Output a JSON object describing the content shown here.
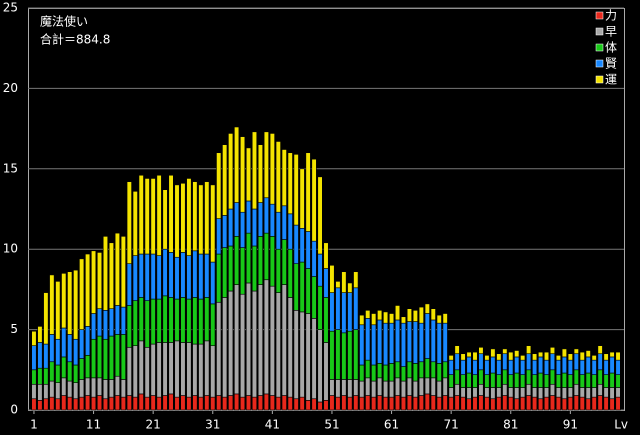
{
  "chart_data": {
    "type": "stacked-bar",
    "title": "魔法使い",
    "subtitle": "合計＝884.8",
    "x_label": "Lv",
    "x": [
      1,
      2,
      3,
      4,
      5,
      6,
      7,
      8,
      9,
      10,
      11,
      12,
      13,
      14,
      15,
      16,
      17,
      18,
      19,
      20,
      21,
      22,
      23,
      24,
      25,
      26,
      27,
      28,
      29,
      30,
      31,
      32,
      33,
      34,
      35,
      36,
      37,
      38,
      39,
      40,
      41,
      42,
      43,
      44,
      45,
      46,
      47,
      48,
      49,
      50,
      51,
      52,
      53,
      54,
      55,
      56,
      57,
      58,
      59,
      60,
      61,
      62,
      63,
      64,
      65,
      66,
      67,
      68,
      69,
      70,
      71,
      72,
      73,
      74,
      75,
      76,
      77,
      78,
      79,
      80,
      81,
      82,
      83,
      84,
      85,
      86,
      87,
      88,
      89,
      90,
      91,
      92,
      93,
      94,
      95,
      96,
      97,
      98,
      99
    ],
    "xlim": [
      0,
      100
    ],
    "xticks": [
      1,
      11,
      21,
      31,
      41,
      51,
      61,
      71,
      81,
      91
    ],
    "ylim": [
      0,
      25
    ],
    "yticks": [
      0,
      5,
      10,
      15,
      20,
      25
    ],
    "grid": true,
    "legend": "top-right",
    "series": [
      {
        "name": "力",
        "color": "#e8281c",
        "values": [
          0.7,
          0.6,
          0.7,
          0.8,
          0.7,
          0.9,
          0.8,
          0.7,
          0.8,
          0.9,
          0.8,
          0.9,
          0.7,
          0.8,
          0.9,
          0.8,
          0.9,
          0.8,
          1.0,
          0.8,
          0.9,
          0.8,
          0.9,
          1.0,
          0.8,
          0.9,
          0.8,
          0.9,
          0.8,
          0.9,
          0.8,
          0.9,
          0.8,
          0.9,
          1.0,
          0.8,
          0.9,
          0.8,
          0.9,
          1.0,
          0.9,
          0.8,
          0.9,
          0.8,
          0.7,
          0.8,
          0.6,
          0.7,
          0.5,
          0.6,
          0.9,
          0.8,
          0.9,
          0.8,
          0.9,
          0.8,
          0.9,
          0.8,
          0.9,
          0.8,
          0.8,
          0.9,
          0.8,
          0.9,
          0.8,
          0.9,
          1.0,
          0.9,
          0.8,
          0.9,
          0.8,
          0.9,
          0.8,
          0.7,
          0.8,
          0.9,
          0.8,
          0.7,
          0.8,
          0.9,
          0.8,
          0.7,
          0.8,
          0.9,
          0.8,
          0.7,
          0.8,
          0.9,
          0.8,
          0.7,
          0.8,
          0.9,
          0.8,
          0.7,
          0.8,
          0.9,
          0.8,
          0.7,
          0.8
        ]
      },
      {
        "name": "早",
        "color": "#a8a8a8",
        "values": [
          0.9,
          1.0,
          0.9,
          1.0,
          1.0,
          1.1,
          1.0,
          1.0,
          1.1,
          1.1,
          1.2,
          1.1,
          1.2,
          1.1,
          1.2,
          1.1,
          3.0,
          3.2,
          3.3,
          3.1,
          3.2,
          3.4,
          3.3,
          3.2,
          3.5,
          3.3,
          3.4,
          3.2,
          3.3,
          3.4,
          3.2,
          5.8,
          6.2,
          6.5,
          6.8,
          6.4,
          7.0,
          6.6,
          6.9,
          7.1,
          6.8,
          6.5,
          6.9,
          6.2,
          5.5,
          5.3,
          5.4,
          5.0,
          4.5,
          3.6,
          1.0,
          1.1,
          1.0,
          1.1,
          1.0,
          1.0,
          1.1,
          1.0,
          1.1,
          1.0,
          1.0,
          1.1,
          1.0,
          1.1,
          1.0,
          1.1,
          1.0,
          1.1,
          1.0,
          1.1,
          0.6,
          0.7,
          0.6,
          0.7,
          0.6,
          0.7,
          0.6,
          0.7,
          0.6,
          0.7,
          0.6,
          0.7,
          0.6,
          0.7,
          0.6,
          0.7,
          0.6,
          0.7,
          0.6,
          0.7,
          0.6,
          0.7,
          0.6,
          0.7,
          0.6,
          0.7,
          0.6,
          0.7,
          0.6
        ]
      },
      {
        "name": "体",
        "color": "#18c818",
        "values": [
          0.9,
          1.0,
          1.0,
          1.2,
          1.1,
          1.3,
          1.2,
          1.1,
          1.3,
          1.4,
          2.4,
          2.6,
          2.5,
          2.7,
          2.6,
          2.8,
          2.6,
          2.8,
          2.7,
          2.9,
          2.8,
          2.7,
          2.9,
          2.8,
          2.6,
          2.8,
          2.7,
          2.9,
          2.8,
          2.7,
          2.6,
          3.0,
          3.1,
          2.8,
          3.0,
          2.9,
          3.1,
          2.8,
          3.0,
          2.9,
          3.1,
          2.7,
          2.8,
          3.0,
          2.9,
          3.1,
          2.8,
          2.6,
          2.7,
          2.8,
          3.0,
          3.1,
          2.9,
          3.0,
          3.1,
          1.0,
          1.1,
          1.0,
          0.9,
          1.0,
          1.1,
          1.0,
          0.9,
          1.0,
          1.1,
          1.0,
          1.2,
          1.0,
          1.1,
          1.0,
          0.8,
          0.9,
          0.8,
          0.9,
          0.8,
          0.9,
          0.8,
          0.9,
          0.8,
          0.9,
          0.8,
          0.9,
          0.8,
          0.9,
          0.8,
          0.9,
          0.8,
          0.9,
          0.8,
          0.9,
          0.8,
          0.9,
          0.8,
          0.9,
          0.8,
          0.9,
          0.8,
          0.9,
          0.8
        ]
      },
      {
        "name": "賢",
        "color": "#1888ff",
        "values": [
          1.5,
          1.6,
          1.5,
          1.7,
          1.6,
          1.8,
          1.7,
          1.6,
          1.8,
          1.8,
          1.6,
          1.7,
          1.8,
          1.7,
          1.8,
          1.7,
          2.6,
          2.8,
          2.7,
          2.9,
          2.8,
          2.7,
          2.9,
          2.8,
          2.6,
          2.8,
          2.7,
          2.9,
          2.8,
          2.7,
          2.6,
          2.2,
          2.0,
          2.3,
          2.1,
          2.2,
          2.0,
          2.3,
          2.1,
          2.2,
          2.0,
          2.3,
          2.1,
          2.2,
          2.4,
          2.1,
          2.3,
          2.2,
          2.0,
          1.8,
          2.4,
          2.6,
          2.5,
          2.4,
          2.6,
          2.5,
          2.6,
          2.5,
          2.7,
          2.6,
          2.5,
          2.6,
          2.7,
          2.5,
          2.6,
          2.4,
          2.8,
          2.6,
          2.5,
          2.4,
          0.9,
          1.0,
          0.9,
          1.0,
          0.9,
          1.0,
          0.9,
          1.0,
          0.9,
          1.0,
          0.9,
          1.0,
          0.9,
          1.0,
          0.9,
          1.0,
          0.9,
          1.0,
          0.9,
          1.0,
          0.9,
          1.0,
          0.9,
          1.0,
          0.9,
          1.0,
          0.9,
          1.0,
          0.9
        ]
      },
      {
        "name": "運",
        "color": "#f4e400",
        "values": [
          0.9,
          1.0,
          3.2,
          3.7,
          3.6,
          3.4,
          3.9,
          4.3,
          4.4,
          4.5,
          3.9,
          3.5,
          4.6,
          4.1,
          4.5,
          4.4,
          5.1,
          4.0,
          4.9,
          4.7,
          4.7,
          5.0,
          3.7,
          4.8,
          4.5,
          4.3,
          4.8,
          4.3,
          4.3,
          4.5,
          4.8,
          4.1,
          4.4,
          4.7,
          4.7,
          4.7,
          3.3,
          4.8,
          3.6,
          4.1,
          4.4,
          4.4,
          3.5,
          3.8,
          4.4,
          3.7,
          4.9,
          5.1,
          4.8,
          1.6,
          1.7,
          0.4,
          1.3,
          0.6,
          1.0,
          0.6,
          0.5,
          0.7,
          0.6,
          0.7,
          0.6,
          0.9,
          0.4,
          0.8,
          0.7,
          1.0,
          0.6,
          0.7,
          0.5,
          0.6,
          0.3,
          0.5,
          0.4,
          0.3,
          0.5,
          0.4,
          0.3,
          0.5,
          0.4,
          0.3,
          0.5,
          0.4,
          0.3,
          0.5,
          0.4,
          0.3,
          0.5,
          0.4,
          0.3,
          0.5,
          0.4,
          0.3,
          0.5,
          0.4,
          0.3,
          0.5,
          0.4,
          0.3,
          0.5
        ]
      }
    ]
  }
}
